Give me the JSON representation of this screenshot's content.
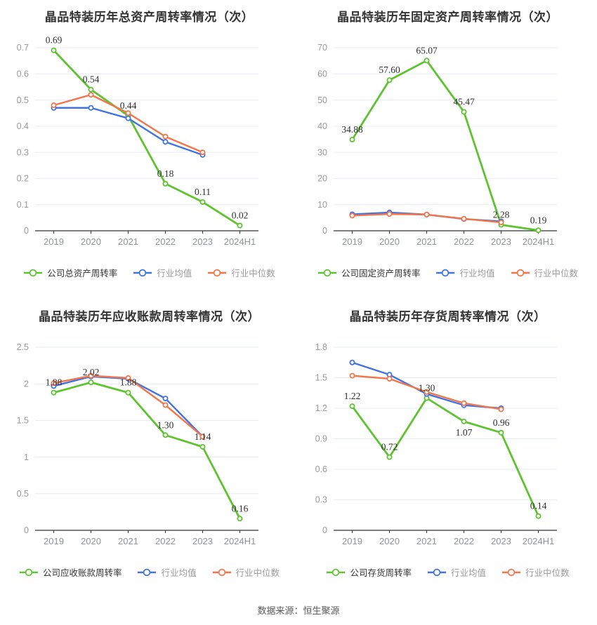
{
  "footer": {
    "source": "数据来源：恒生聚源"
  },
  "colors": {
    "company": "#5FC331",
    "industry_avg": "#4273E3",
    "industry_median": "#F2764A",
    "grid": "#E6ECF8",
    "axis_line": "#333333",
    "tick_label": "#999999",
    "title": "#333333",
    "data_label": "#2F2F2F"
  },
  "chart_data": [
    {
      "type": "line",
      "title": "晶品特装历年总资产周转率情况（次）",
      "categories": [
        "2019",
        "2020",
        "2021",
        "2022",
        "2023",
        "2024H1"
      ],
      "ylim": [
        0,
        0.7
      ],
      "ytick_interval": 0.1,
      "grid": true,
      "legend_position": "bottom",
      "series": [
        {
          "name": "公司总资产周转率",
          "role": "company",
          "values": [
            0.69,
            0.54,
            0.44,
            0.18,
            0.11,
            0.02
          ],
          "labels": [
            "0.69",
            "0.54",
            "0.44",
            "0.18",
            "0.11",
            "0.02"
          ],
          "show_labels": true
        },
        {
          "name": "行业均值",
          "role": "industry_avg",
          "values": [
            0.47,
            0.47,
            0.43,
            0.34,
            0.29,
            null
          ]
        },
        {
          "name": "行业中位数",
          "role": "industry_median",
          "values": [
            0.48,
            0.52,
            0.45,
            0.36,
            0.3,
            null
          ]
        }
      ]
    },
    {
      "type": "line",
      "title": "晶品特装历年固定资产周转率情况（次）",
      "categories": [
        "2019",
        "2020",
        "2021",
        "2022",
        "2023",
        "2024H1"
      ],
      "ylim": [
        0,
        70
      ],
      "ytick_interval": 10,
      "grid": true,
      "legend_position": "bottom",
      "series": [
        {
          "name": "公司固定资产周转率",
          "role": "company",
          "values": [
            34.88,
            57.6,
            65.07,
            45.47,
            2.28,
            0.19
          ],
          "labels": [
            "34.88",
            "57.60",
            "65.07",
            "45.47",
            "2.28",
            "0.19"
          ],
          "show_labels": true
        },
        {
          "name": "行业均值",
          "role": "industry_avg",
          "values": [
            6.3,
            7.0,
            6.2,
            4.5,
            3.6,
            null
          ]
        },
        {
          "name": "行业中位数",
          "role": "industry_median",
          "values": [
            5.8,
            6.4,
            6.2,
            4.6,
            3.2,
            null
          ]
        }
      ]
    },
    {
      "type": "line",
      "title": "晶品特装历年应收账款周转率情况（次）",
      "categories": [
        "2019",
        "2020",
        "2021",
        "2022",
        "2023",
        "2024H1"
      ],
      "ylim": [
        0,
        2.5
      ],
      "ytick_interval": 0.5,
      "grid": true,
      "legend_position": "bottom",
      "series": [
        {
          "name": "公司应收账款周转率",
          "role": "company",
          "values": [
            1.88,
            2.02,
            1.88,
            1.3,
            1.14,
            0.16
          ],
          "labels": [
            "1.88",
            "2.02",
            "1.88",
            "1.30",
            "1.14",
            "0.16"
          ],
          "show_labels": true
        },
        {
          "name": "行业均值",
          "role": "industry_avg",
          "values": [
            1.97,
            2.1,
            2.07,
            1.8,
            1.28,
            null
          ]
        },
        {
          "name": "行业中位数",
          "role": "industry_median",
          "values": [
            2.01,
            2.11,
            2.08,
            1.71,
            1.28,
            null
          ]
        }
      ]
    },
    {
      "type": "line",
      "title": "晶品特装历年存货周转率情况（次）",
      "categories": [
        "2019",
        "2020",
        "2021",
        "2022",
        "2023",
        "2024H1"
      ],
      "ylim": [
        0,
        1.8
      ],
      "ytick_interval": 0.3,
      "grid": true,
      "legend_position": "bottom",
      "series": [
        {
          "name": "公司存货周转率",
          "role": "company",
          "values": [
            1.22,
            0.72,
            1.3,
            1.07,
            0.96,
            0.14
          ],
          "labels": [
            "1.22",
            "0.72",
            "1.30",
            "1.07",
            "0.96",
            "0.14"
          ],
          "show_labels": true,
          "label_dy": {
            "3": 20
          }
        },
        {
          "name": "行业均值",
          "role": "industry_avg",
          "values": [
            1.65,
            1.53,
            1.34,
            1.23,
            1.2,
            null
          ]
        },
        {
          "name": "行业中位数",
          "role": "industry_median",
          "values": [
            1.52,
            1.49,
            1.36,
            1.25,
            1.19,
            null
          ]
        }
      ]
    }
  ]
}
